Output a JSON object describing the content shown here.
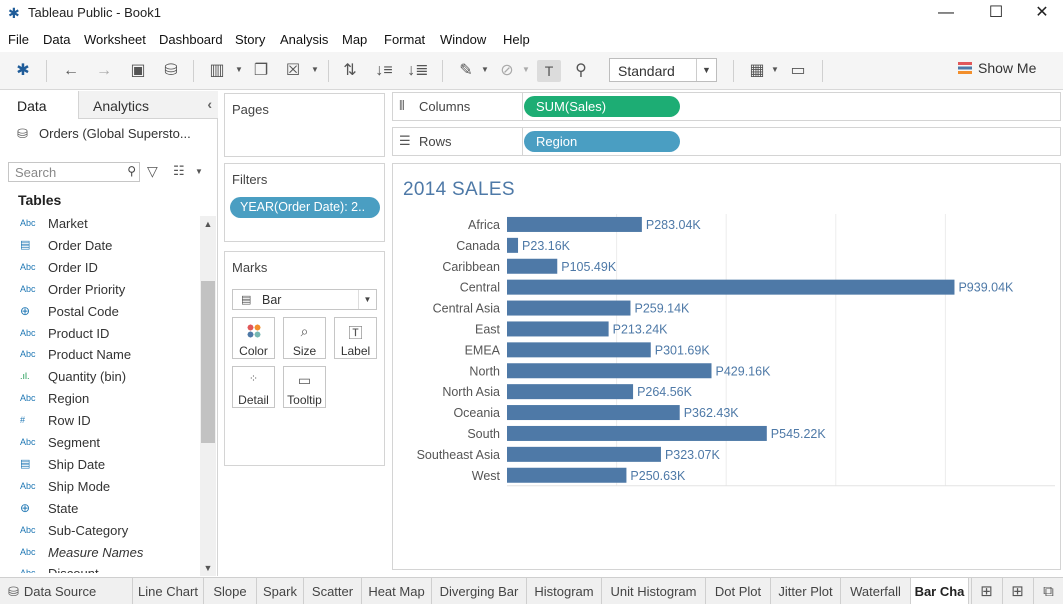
{
  "window": {
    "title": "Tableau Public - Book1",
    "minimize": "—",
    "maximize": "☐",
    "close": "✕"
  },
  "menu": [
    "File",
    "Data",
    "Worksheet",
    "Dashboard",
    "Story",
    "Analysis",
    "Map",
    "Format",
    "Window",
    "Help"
  ],
  "toolbar": {
    "fit_select": "Standard",
    "show_me": "Show Me"
  },
  "data_pane": {
    "tab_data": "Data",
    "tab_analytics": "Analytics",
    "datasource": "Orders (Global Supersto...",
    "search_placeholder": "Search",
    "tables_heading": "Tables",
    "fields": [
      {
        "icon": "Abc",
        "type": "string",
        "name": "Market"
      },
      {
        "icon": "date",
        "type": "date",
        "name": "Order Date"
      },
      {
        "icon": "Abc",
        "type": "string",
        "name": "Order ID"
      },
      {
        "icon": "Abc",
        "type": "string",
        "name": "Order Priority"
      },
      {
        "icon": "globe",
        "type": "geo",
        "name": "Postal Code"
      },
      {
        "icon": "Abc",
        "type": "string",
        "name": "Product ID"
      },
      {
        "icon": "Abc",
        "type": "string",
        "name": "Product Name"
      },
      {
        "icon": "bin",
        "type": "bin",
        "name": "Quantity (bin)"
      },
      {
        "icon": "Abc",
        "type": "string",
        "name": "Region"
      },
      {
        "icon": "#",
        "type": "number",
        "name": "Row ID"
      },
      {
        "icon": "Abc",
        "type": "string",
        "name": "Segment"
      },
      {
        "icon": "date",
        "type": "date",
        "name": "Ship Date"
      },
      {
        "icon": "Abc",
        "type": "string",
        "name": "Ship Mode"
      },
      {
        "icon": "globe",
        "type": "geo",
        "name": "State"
      },
      {
        "icon": "Abc",
        "type": "string",
        "name": "Sub-Category"
      },
      {
        "icon": "Abc",
        "type": "string",
        "name": "Measure Names",
        "italic": true
      },
      {
        "icon": "Abc",
        "type": "string",
        "name": "Discount"
      }
    ]
  },
  "pages": {
    "title": "Pages"
  },
  "filters": {
    "title": "Filters",
    "pill": "YEAR(Order Date): 2.."
  },
  "marks": {
    "title": "Marks",
    "type": "Bar",
    "buttons": {
      "color": "Color",
      "size": "Size",
      "label": "Label",
      "detail": "Detail",
      "tooltip": "Tooltip"
    }
  },
  "shelves": {
    "columns_label": "Columns",
    "columns_pill": "SUM(Sales)",
    "rows_label": "Rows",
    "rows_pill": "Region"
  },
  "colors": {
    "measure_pill": "#1dad74",
    "dimension_pill": "#4a9ec2",
    "bar": "#4e79a7",
    "label": "#4e79a7"
  },
  "chart_data": {
    "type": "bar",
    "orientation": "horizontal",
    "title": "2014 SALES",
    "categories": [
      "Africa",
      "Canada",
      "Caribbean",
      "Central",
      "Central Asia",
      "East",
      "EMEA",
      "North",
      "North Asia",
      "Oceania",
      "South",
      "Southeast Asia",
      "West"
    ],
    "values": [
      283040,
      23160,
      105490,
      939040,
      259140,
      213240,
      301690,
      429160,
      264560,
      362430,
      545220,
      323070,
      250630
    ],
    "labels": [
      "P283.04K",
      "P23.16K",
      "P105.49K",
      "P939.04K",
      "P259.14K",
      "P213.24K",
      "P301.69K",
      "P429.16K",
      "P264.56K",
      "P362.43K",
      "P545.22K",
      "P323.07K",
      "P250.63K"
    ],
    "xlim": [
      0,
      1150000
    ],
    "grid": true
  },
  "sheet_tabs": {
    "data_source": "Data Source",
    "sheets": [
      "Line Chart",
      "Slope",
      "Spark",
      "Scatter",
      "Heat Map",
      "Diverging Bar",
      "Histogram",
      "Unit Histogram",
      "Dot Plot",
      "Jitter Plot",
      "Waterfall",
      "Bar Cha"
    ],
    "active": "Bar Cha"
  }
}
